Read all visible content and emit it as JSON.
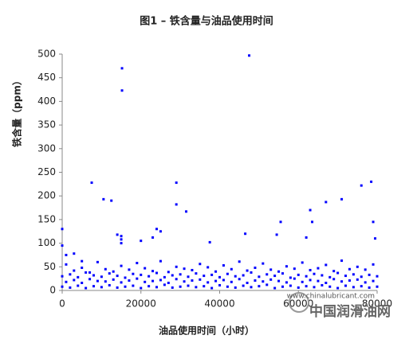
{
  "chart_data": {
    "type": "scatter",
    "title": "图1 – 铁含量与油品使用时间",
    "x_label": "油品使用时间（小时）",
    "y_label": "铁含量（ppm）",
    "color": "#0000ff",
    "xlim": [
      0,
      80000
    ],
    "xticks": [
      0,
      20000,
      40000,
      60000,
      80000
    ],
    "ylim": [
      0,
      500
    ],
    "yticks": [
      0,
      50,
      100,
      150,
      200,
      250,
      300,
      350,
      400,
      450,
      500
    ],
    "x": [
      0,
      2000,
      4000,
      6000,
      8000,
      10000,
      12000,
      14000,
      16000,
      18000,
      20000,
      22000,
      24000,
      26000,
      28000,
      30000,
      32000,
      34000,
      36000,
      38000,
      40000,
      42000,
      44000,
      46000,
      48000,
      50000,
      52000,
      54000,
      56000,
      58000,
      60000,
      62000,
      64000,
      66000,
      68000,
      70000,
      72000,
      74000,
      76000,
      78000,
      80000,
      1000,
      3000,
      5000,
      7000,
      9000,
      11000,
      13000,
      15000,
      17000,
      19000,
      21000,
      23000,
      25000,
      27000,
      29000,
      31000,
      33000,
      35000,
      37000,
      39000,
      41000,
      43000,
      45000,
      47000,
      49000,
      51000,
      53000,
      55000,
      57000,
      59000,
      61000,
      63000,
      65000,
      67000,
      69000,
      71000,
      73000,
      75000,
      77000,
      79000,
      0,
      2000,
      4000,
      6000,
      8000,
      10000,
      12000,
      14000,
      16000,
      18000,
      20000,
      22000,
      24000,
      26000,
      28000,
      30000,
      32000,
      34000,
      36000,
      38000,
      40000,
      42000,
      44000,
      46000,
      48000,
      50000,
      52000,
      54000,
      56000,
      58000,
      60000,
      62000,
      64000,
      66000,
      68000,
      70000,
      72000,
      74000,
      76000,
      78000,
      80000,
      1000,
      3000,
      5000,
      7000,
      9000,
      11000,
      13000,
      15000,
      17000,
      19000,
      21000,
      23000,
      25000,
      27000,
      29000,
      31000,
      33000,
      35000,
      37000,
      39000,
      41000,
      43000,
      45000,
      47000,
      49000,
      51000,
      53000,
      55000,
      57000,
      59000,
      61000,
      63000,
      65000,
      67000,
      69000,
      71000,
      73000,
      75000,
      77000,
      79000,
      0,
      0,
      1000,
      3000,
      5000,
      7500,
      10500,
      12500,
      14000,
      15000,
      15000,
      15000,
      15200,
      15200,
      20000,
      23000,
      24000,
      25000,
      29000,
      29000,
      31500,
      37500,
      46500,
      47500,
      54500,
      55500,
      62000,
      63000,
      63500,
      67000,
      71000,
      76000,
      78500,
      79000,
      79500
    ],
    "values": [
      8,
      6,
      10,
      5,
      9,
      7,
      11,
      6,
      8,
      10,
      5,
      9,
      7,
      12,
      6,
      8,
      10,
      7,
      9,
      5,
      11,
      8,
      6,
      10,
      7,
      9,
      12,
      5,
      8,
      10,
      6,
      9,
      7,
      11,
      8,
      5,
      10,
      7,
      9,
      6,
      8,
      18,
      22,
      16,
      24,
      20,
      19,
      23,
      17,
      21,
      25,
      18,
      20,
      22,
      16,
      24,
      19,
      21,
      23,
      17,
      20,
      22,
      18,
      24,
      16,
      21,
      19,
      23,
      20,
      17,
      25,
      18,
      22,
      20,
      16,
      24,
      19,
      21,
      23,
      17,
      20,
      30,
      34,
      28,
      38,
      32,
      29,
      36,
      31,
      27,
      35,
      33,
      30,
      37,
      28,
      32,
      34,
      29,
      36,
      31,
      33,
      28,
      35,
      30,
      32,
      38,
      29,
      34,
      31,
      36,
      27,
      33,
      30,
      35,
      32,
      28,
      37,
      31,
      34,
      29,
      33,
      30,
      55,
      42,
      48,
      38,
      60,
      45,
      40,
      52,
      44,
      58,
      47,
      41,
      62,
      39,
      50,
      46,
      43,
      56,
      49,
      40,
      53,
      45,
      61,
      42,
      48,
      57,
      44,
      40,
      51,
      46,
      59,
      43,
      47,
      54,
      41,
      63,
      45,
      50,
      44,
      55,
      130,
      95,
      75,
      78,
      62,
      228,
      193,
      190,
      118,
      115,
      108,
      100,
      470,
      423,
      105,
      112,
      130,
      125,
      228,
      182,
      167,
      102,
      120,
      497,
      118,
      145,
      112,
      170,
      145,
      187,
      193,
      222,
      230,
      145,
      110
    ]
  },
  "watermark": {
    "url": "www.chinalubricant.com",
    "name": "中国润滑油网"
  }
}
